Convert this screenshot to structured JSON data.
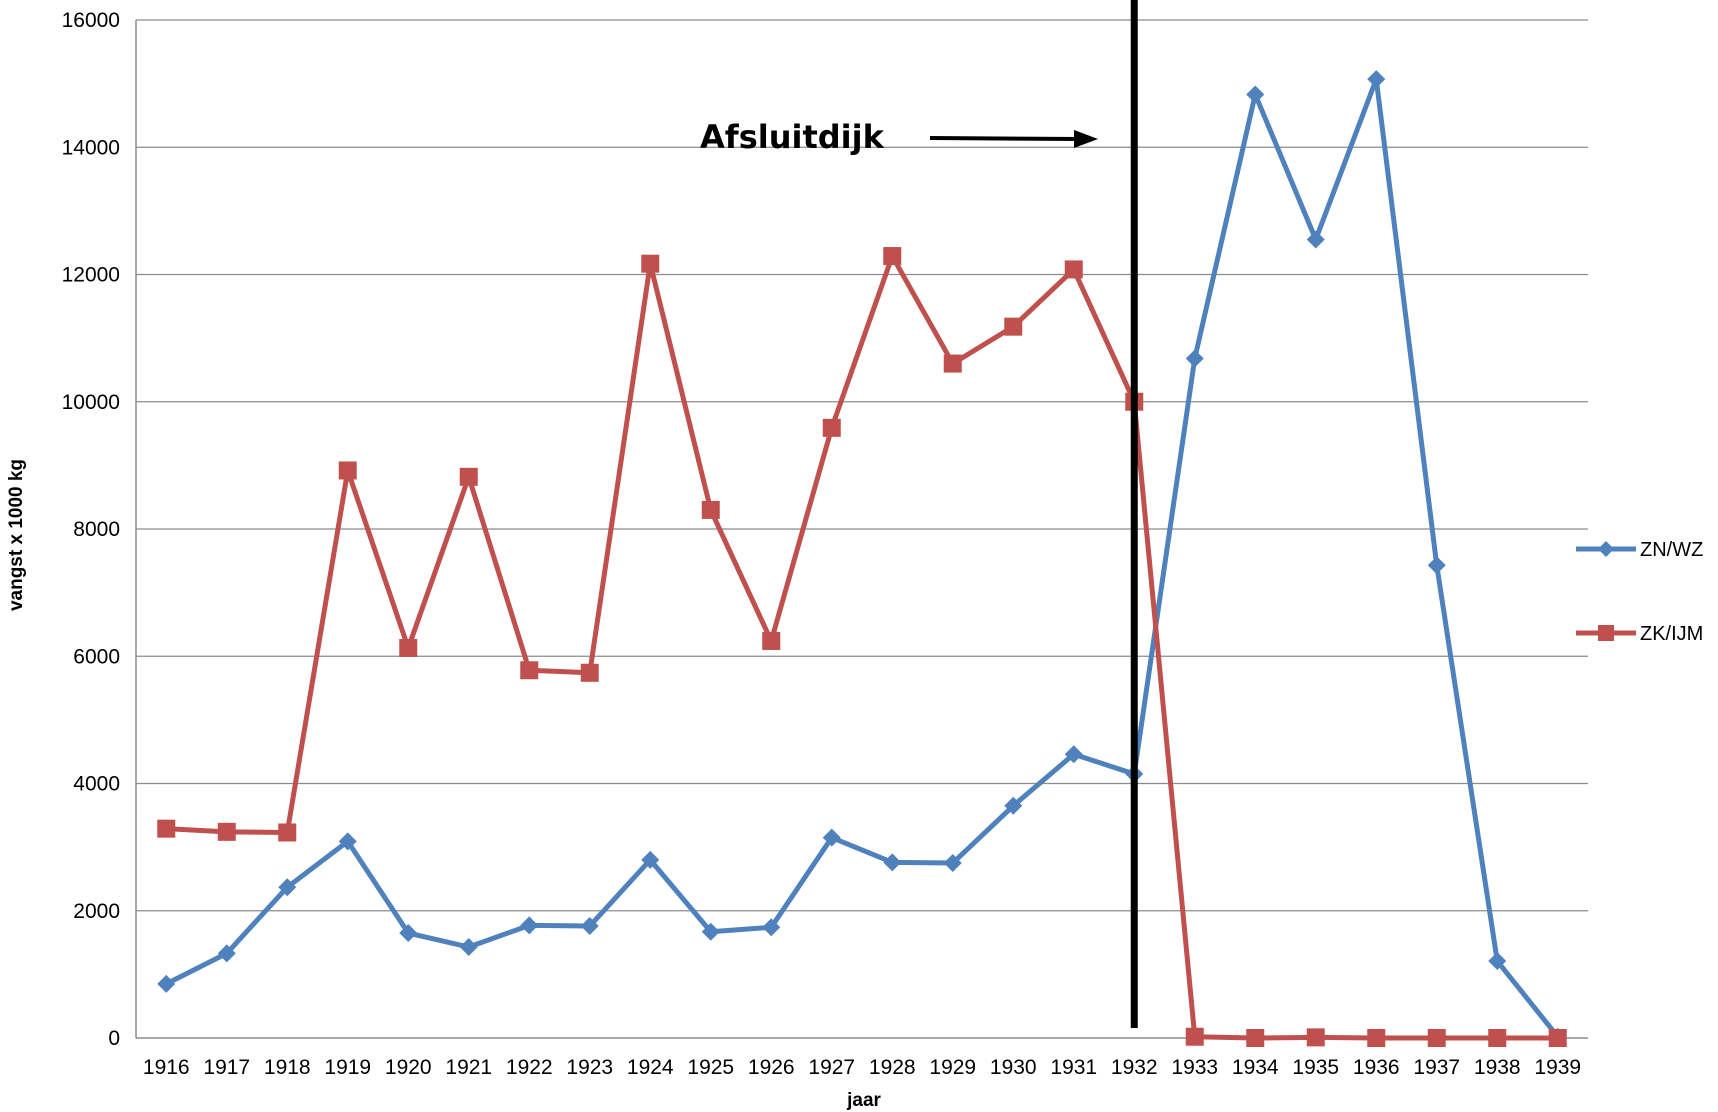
{
  "chart_data": {
    "type": "line",
    "title": "",
    "xlabel": "jaar",
    "ylabel": "vangst  x 1000 kg",
    "ylim": [
      0,
      16000
    ],
    "yticks": [
      0,
      2000,
      4000,
      6000,
      8000,
      10000,
      12000,
      14000,
      16000
    ],
    "grid": true,
    "legend": "right",
    "categories": [
      "1916",
      "1917",
      "1918",
      "1919",
      "1920",
      "1921",
      "1922",
      "1923",
      "1924",
      "1925",
      "1926",
      "1927",
      "1928",
      "1929",
      "1930",
      "1931",
      "1932",
      "1933",
      "1934",
      "1935",
      "1936",
      "1937",
      "1938",
      "1939"
    ],
    "series": [
      {
        "name": "ZN/WZ",
        "color": "#4f81bd",
        "marker": "diamond",
        "values": [
          850,
          1330,
          2370,
          3090,
          1650,
          1430,
          1770,
          1760,
          2800,
          1670,
          1740,
          3150,
          2760,
          2750,
          3650,
          4460,
          4150,
          10680,
          14830,
          12550,
          15070,
          7430,
          1210,
          20
        ]
      },
      {
        "name": "ZK/IJM",
        "color": "#c0504d",
        "marker": "square",
        "values": [
          3290,
          3240,
          3230,
          8920,
          6130,
          8820,
          5780,
          5740,
          12170,
          8300,
          6240,
          9590,
          12290,
          10600,
          11180,
          12080,
          10000,
          20,
          0,
          10,
          0,
          0,
          0,
          0
        ]
      }
    ],
    "annotation": {
      "label": "Afsluitdijk",
      "at_category": "1932",
      "y": 14000,
      "marker_line_color": "#000000"
    }
  }
}
